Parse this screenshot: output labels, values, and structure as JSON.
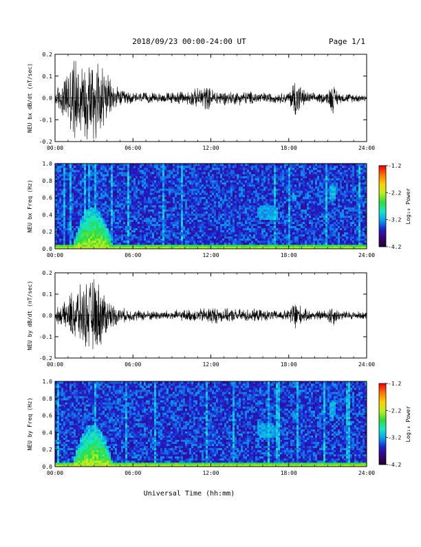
{
  "page_title": "2018/09/23  00:00-24:00 UT",
  "page_number": "Page 1/1",
  "x_axis_label": "Universal Time (hh:mm)",
  "colors": {
    "background": "#ffffff",
    "trace": "#000000",
    "colormap": [
      "#1e0030",
      "#3a0070",
      "#1f1fd0",
      "#0aa0f0",
      "#15e8c8",
      "#2edc3a",
      "#b8f020",
      "#ffd000",
      "#ff7a00",
      "#ff0000"
    ]
  },
  "chart_data": [
    {
      "type": "line",
      "ylabel": "NEU bx dB/dt (nT/sec)",
      "xlim": [
        0,
        24
      ],
      "ylim": [
        -0.2,
        0.2
      ],
      "x_ticks": [
        "00:00",
        "06:00",
        "12:00",
        "18:00",
        "24:00"
      ],
      "y_ticks": [
        "-0.2",
        "-0.1",
        "0.0",
        "0.1",
        "0.2"
      ],
      "envelope": {
        "hours": [
          0,
          0.5,
          1.0,
          1.5,
          2.0,
          2.5,
          3.0,
          3.5,
          4.0,
          4.5,
          5.0,
          6.0,
          8.0,
          10.0,
          11.0,
          11.5,
          12.0,
          13.0,
          15.0,
          16.0,
          17.0,
          18.0,
          18.5,
          19.0,
          19.5,
          20.0,
          21.0,
          21.3,
          21.6,
          22.0,
          24.0
        ],
        "amplitude": [
          0.05,
          0.08,
          0.16,
          0.22,
          0.2,
          0.22,
          0.24,
          0.22,
          0.12,
          0.07,
          0.045,
          0.03,
          0.025,
          0.035,
          0.05,
          0.07,
          0.05,
          0.035,
          0.035,
          0.03,
          0.025,
          0.03,
          0.12,
          0.05,
          0.03,
          0.025,
          0.03,
          0.09,
          0.05,
          0.025,
          0.02
        ]
      }
    },
    {
      "type": "heatmap",
      "ylabel": "NEU bx Freq (Hz)",
      "xlim": [
        0,
        24
      ],
      "ylim": [
        0.0,
        1.0
      ],
      "x_ticks": [
        "00:00",
        "06:00",
        "12:00",
        "18:00",
        "24:00"
      ],
      "y_ticks": [
        "0.0",
        "0.2",
        "0.4",
        "0.6",
        "0.8",
        "1.0"
      ],
      "colorbar": {
        "label": "Log₁₀ Power",
        "range": [
          -4.2,
          -1.2
        ],
        "ticks": [
          "-1.2",
          "-2.2",
          "-3.2",
          "-4.2"
        ]
      },
      "features": [
        {
          "name": "storm broadband",
          "hours": [
            1.0,
            5.0
          ],
          "freq_hz": [
            0.0,
            0.5
          ],
          "log_power": -2.4
        },
        {
          "name": "low-frequency band",
          "hours": [
            0.0,
            24.0
          ],
          "freq_hz": [
            0.0,
            0.05
          ],
          "log_power": -3.0
        },
        {
          "name": "emission 1",
          "hours": [
            15.5,
            17.2
          ],
          "freq_hz": [
            0.33,
            0.52
          ],
          "log_power": -3.1
        },
        {
          "name": "emission 2",
          "hours": [
            18.2,
            18.6
          ],
          "freq_hz": [
            0.55,
            0.65
          ],
          "log_power": -3.1
        },
        {
          "name": "emission 3",
          "hours": [
            21.1,
            21.6
          ],
          "freq_hz": [
            0.57,
            0.75
          ],
          "log_power": -3.0
        }
      ]
    },
    {
      "type": "line",
      "ylabel": "NEU by dB/dt (nT/sec)",
      "xlim": [
        0,
        24
      ],
      "ylim": [
        -0.2,
        0.2
      ],
      "x_ticks": [
        "00:00",
        "06:00",
        "12:00",
        "18:00",
        "24:00"
      ],
      "y_ticks": [
        "-0.2",
        "-0.1",
        "0.0",
        "0.1",
        "0.2"
      ],
      "envelope": {
        "hours": [
          0,
          0.5,
          1.0,
          1.5,
          2.0,
          2.5,
          3.0,
          3.5,
          4.0,
          4.5,
          5.0,
          6.0,
          8.0,
          10.0,
          11.0,
          11.5,
          12.0,
          13.0,
          15.0,
          16.0,
          17.0,
          18.0,
          18.5,
          19.0,
          19.5,
          20.0,
          21.0,
          21.3,
          21.6,
          22.0,
          24.0
        ],
        "amplitude": [
          0.04,
          0.05,
          0.09,
          0.16,
          0.15,
          0.18,
          0.2,
          0.17,
          0.1,
          0.06,
          0.04,
          0.03,
          0.025,
          0.03,
          0.035,
          0.04,
          0.05,
          0.035,
          0.035,
          0.03,
          0.025,
          0.03,
          0.1,
          0.04,
          0.03,
          0.025,
          0.03,
          0.07,
          0.04,
          0.025,
          0.02
        ]
      }
    },
    {
      "type": "heatmap",
      "ylabel": "NEU by Freq (Hz)",
      "xlim": [
        0,
        24
      ],
      "ylim": [
        0.0,
        1.0
      ],
      "x_ticks": [
        "00:00",
        "06:00",
        "12:00",
        "18:00",
        "24:00"
      ],
      "y_ticks": [
        "0.0",
        "0.2",
        "0.4",
        "0.6",
        "0.8",
        "1.0"
      ],
      "colorbar": {
        "label": "Log₁₀ Power",
        "range": [
          -4.2,
          -1.2
        ],
        "ticks": [
          "-1.2",
          "-2.2",
          "-3.2",
          "-4.2"
        ]
      },
      "features": [
        {
          "name": "storm broadband",
          "hours": [
            1.0,
            5.0
          ],
          "freq_hz": [
            0.0,
            0.5
          ],
          "log_power": -2.4
        },
        {
          "name": "low-frequency band",
          "hours": [
            0.0,
            24.0
          ],
          "freq_hz": [
            0.0,
            0.05
          ],
          "log_power": -3.0
        },
        {
          "name": "emission 1",
          "hours": [
            15.5,
            17.2
          ],
          "freq_hz": [
            0.33,
            0.52
          ],
          "log_power": -3.1
        },
        {
          "name": "emission 2",
          "hours": [
            18.2,
            18.6
          ],
          "freq_hz": [
            0.55,
            0.65
          ],
          "log_power": -3.1
        },
        {
          "name": "emission 3",
          "hours": [
            21.1,
            21.6
          ],
          "freq_hz": [
            0.57,
            0.78
          ],
          "log_power": -3.0
        }
      ]
    }
  ]
}
